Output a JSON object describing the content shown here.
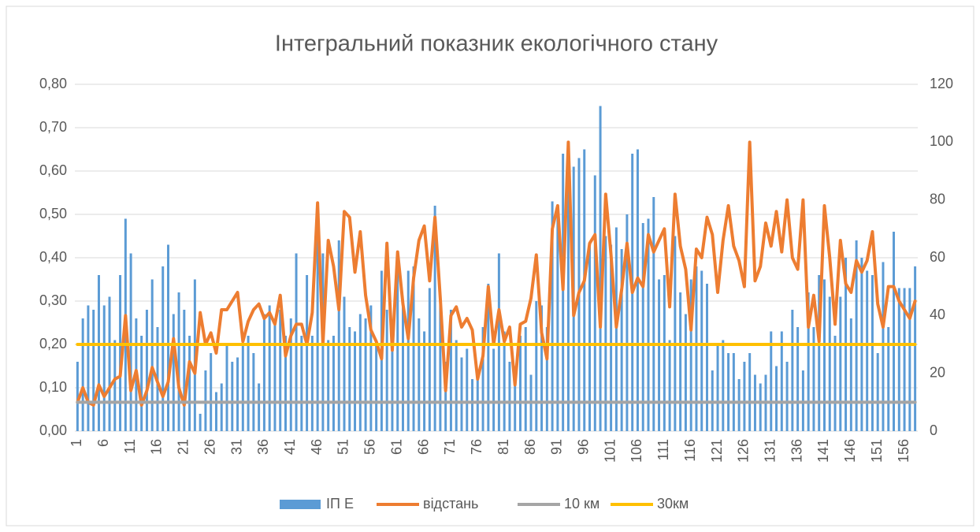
{
  "chart_data": {
    "type": "combo",
    "title": "Інтегральний показник екологічного стану",
    "categories": [
      1,
      null,
      null,
      null,
      null,
      6,
      null,
      null,
      null,
      null,
      11,
      null,
      null,
      null,
      null,
      16,
      null,
      null,
      null,
      null,
      21,
      null,
      null,
      null,
      null,
      26,
      null,
      null,
      null,
      null,
      31,
      null,
      null,
      null,
      null,
      36,
      null,
      null,
      null,
      null,
      41,
      null,
      null,
      null,
      null,
      46,
      null,
      null,
      null,
      null,
      51,
      null,
      null,
      null,
      null,
      56,
      null,
      null,
      null,
      null,
      61,
      null,
      null,
      null,
      null,
      66,
      null,
      null,
      null,
      null,
      71,
      null,
      null,
      null,
      null,
      76,
      null,
      null,
      null,
      null,
      81,
      null,
      null,
      null,
      null,
      86,
      null,
      null,
      null,
      null,
      91,
      null,
      null,
      null,
      null,
      96,
      null,
      null,
      null,
      null,
      101,
      null,
      null,
      null,
      null,
      106,
      null,
      null,
      null,
      null,
      111,
      null,
      null,
      null,
      null,
      116,
      null,
      null,
      null,
      null,
      121,
      null,
      null,
      null,
      null,
      126,
      null,
      null,
      null,
      null,
      131,
      null,
      null,
      null,
      null,
      136,
      null,
      null,
      null,
      null,
      141,
      null,
      null,
      null,
      null,
      146,
      null,
      null,
      null,
      null,
      151,
      null,
      null,
      null,
      null,
      156,
      null,
      null
    ],
    "ylim": [
      0,
      0.8
    ],
    "yticks": [
      {
        "value": 0,
        "label": "0,00"
      },
      {
        "value": 0.1,
        "label": "0,10"
      },
      {
        "value": 0.2,
        "label": "0,20"
      },
      {
        "value": 0.3,
        "label": "0,30"
      },
      {
        "value": 0.4,
        "label": "0,40"
      },
      {
        "value": 0.5,
        "label": "0,50"
      },
      {
        "value": 0.6,
        "label": "0,60"
      },
      {
        "value": 0.7,
        "label": "0,70"
      },
      {
        "value": 0.8,
        "label": "0,80"
      }
    ],
    "y2lim": [
      0,
      120
    ],
    "y2ticks": [
      0,
      20,
      40,
      60,
      80,
      100,
      120
    ],
    "grid": true,
    "legend": "bottom",
    "series": [
      {
        "name": "ІП Е",
        "type": "bar",
        "color": "#5b9bd5",
        "values": [
          0.16,
          0.26,
          0.29,
          0.28,
          0.36,
          0.29,
          0.31,
          0.21,
          0.36,
          0.49,
          0.41,
          0.26,
          0.22,
          0.28,
          0.35,
          0.24,
          0.38,
          0.43,
          0.27,
          0.32,
          0.28,
          0.22,
          0.35,
          0.04,
          0.14,
          0.18,
          0.09,
          0.11,
          0.2,
          0.16,
          0.17,
          0.2,
          0.22,
          0.18,
          0.11,
          0.27,
          0.29,
          0.25,
          0.28,
          0.22,
          0.26,
          0.41,
          0.22,
          0.36,
          0.22,
          0.48,
          0.41,
          0.21,
          0.22,
          0.44,
          0.31,
          0.24,
          0.23,
          0.27,
          0.26,
          0.29,
          0.21,
          0.37,
          0.28,
          0.22,
          0.38,
          0.3,
          0.37,
          0.38,
          0.26,
          0.23,
          0.33,
          0.52,
          0.29,
          0.16,
          0.28,
          0.21,
          0.17,
          0.19,
          0.12,
          0.12,
          0.24,
          0.34,
          0.19,
          0.41,
          0.23,
          0.16,
          0.15,
          0.22,
          0.24,
          0.13,
          0.3,
          0.29,
          0.24,
          0.53,
          0.52,
          0.64,
          0.66,
          0.61,
          0.63,
          0.65,
          0.43,
          0.59,
          0.75,
          0.45,
          0.43,
          0.47,
          0.42,
          0.5,
          0.64,
          0.65,
          0.48,
          0.49,
          0.54,
          0.35,
          0.36,
          0.21,
          0.45,
          0.32,
          0.27,
          0.35,
          0.38,
          0.37,
          0.34,
          0.14,
          0.2,
          0.21,
          0.18,
          0.18,
          0.12,
          0.16,
          0.18,
          0.13,
          0.11,
          0.13,
          0.23,
          0.15,
          0.23,
          0.16,
          0.28,
          0.24,
          0.14,
          0.32,
          0.24,
          0.36,
          0.35,
          0.31,
          0.22,
          0.31,
          0.4,
          0.26,
          0.44,
          0.4,
          0.37,
          0.36,
          0.18,
          0.39,
          0.24,
          0.46,
          0.33,
          0.33,
          0.33,
          0.38
        ]
      },
      {
        "name": "відстань",
        "type": "line",
        "axis": "y2",
        "color": "#ed7d31",
        "values": [
          10,
          15,
          10,
          9,
          16,
          12,
          15,
          18,
          19,
          40,
          14,
          21,
          9,
          14,
          22,
          17,
          12,
          17,
          32,
          15,
          9,
          24,
          20,
          41,
          30,
          34,
          27,
          42,
          42,
          45,
          48,
          31,
          38,
          42,
          44,
          39,
          41,
          37,
          47,
          26,
          33,
          37,
          37,
          30,
          41,
          79,
          30,
          66,
          57,
          42,
          76,
          74,
          55,
          69,
          47,
          35,
          31,
          25,
          65,
          28,
          62,
          44,
          32,
          53,
          66,
          71,
          52,
          74,
          46,
          14,
          40,
          43,
          36,
          39,
          35,
          18,
          26,
          50,
          30,
          42,
          31,
          36,
          16,
          37,
          38,
          46,
          61,
          34,
          25,
          70,
          78,
          49,
          100,
          40,
          48,
          52,
          65,
          68,
          36,
          82,
          61,
          36,
          49,
          65,
          48,
          53,
          50,
          68,
          62,
          66,
          70,
          43,
          82,
          64,
          56,
          35,
          63,
          60,
          74,
          68,
          48,
          66,
          78,
          64,
          59,
          50,
          100,
          52,
          57,
          72,
          64,
          76,
          62,
          80,
          60,
          56,
          80,
          36,
          47,
          31,
          78,
          60,
          37,
          66,
          51,
          48,
          59,
          55,
          59,
          69,
          44,
          36,
          50,
          50,
          45,
          42,
          39,
          45
        ]
      },
      {
        "name": "10 км",
        "type": "line",
        "axis": "y2",
        "color": "#a5a5a5",
        "values": [
          10,
          10,
          10,
          10,
          10,
          10,
          10,
          10,
          10,
          10,
          10,
          10,
          10,
          10,
          10,
          10,
          10,
          10,
          10,
          10,
          10,
          10,
          10,
          10,
          10,
          10,
          10,
          10,
          10,
          10,
          10,
          10,
          10,
          10,
          10,
          10,
          10,
          10,
          10,
          10,
          10,
          10,
          10,
          10,
          10,
          10,
          10,
          10,
          10,
          10,
          10,
          10,
          10,
          10,
          10,
          10,
          10,
          10,
          10,
          10,
          10,
          10,
          10,
          10,
          10,
          10,
          10,
          10,
          10,
          10,
          10,
          10,
          10,
          10,
          10,
          10,
          10,
          10,
          10,
          10,
          10,
          10,
          10,
          10,
          10,
          10,
          10,
          10,
          10,
          10,
          10,
          10,
          10,
          10,
          10,
          10,
          10,
          10,
          10,
          10,
          10,
          10,
          10,
          10,
          10,
          10,
          10,
          10,
          10,
          10,
          10,
          10,
          10,
          10,
          10,
          10,
          10,
          10,
          10,
          10,
          10,
          10,
          10,
          10,
          10,
          10,
          10,
          10,
          10,
          10,
          10,
          10,
          10,
          10,
          10,
          10,
          10,
          10,
          10,
          10,
          10,
          10,
          10,
          10,
          10,
          10,
          10,
          10,
          10,
          10,
          10,
          10,
          10,
          10,
          10,
          10,
          10,
          10
        ]
      },
      {
        "name": "30км",
        "type": "line",
        "axis": "y2",
        "color": "#ffc000",
        "values": [
          30,
          30,
          30,
          30,
          30,
          30,
          30,
          30,
          30,
          30,
          30,
          30,
          30,
          30,
          30,
          30,
          30,
          30,
          30,
          30,
          30,
          30,
          30,
          30,
          30,
          30,
          30,
          30,
          30,
          30,
          30,
          30,
          30,
          30,
          30,
          30,
          30,
          30,
          30,
          30,
          30,
          30,
          30,
          30,
          30,
          30,
          30,
          30,
          30,
          30,
          30,
          30,
          30,
          30,
          30,
          30,
          30,
          30,
          30,
          30,
          30,
          30,
          30,
          30,
          30,
          30,
          30,
          30,
          30,
          30,
          30,
          30,
          30,
          30,
          30,
          30,
          30,
          30,
          30,
          30,
          30,
          30,
          30,
          30,
          30,
          30,
          30,
          30,
          30,
          30,
          30,
          30,
          30,
          30,
          30,
          30,
          30,
          30,
          30,
          30,
          30,
          30,
          30,
          30,
          30,
          30,
          30,
          30,
          30,
          30,
          30,
          30,
          30,
          30,
          30,
          30,
          30,
          30,
          30,
          30,
          30,
          30,
          30,
          30,
          30,
          30,
          30,
          30,
          30,
          30,
          30,
          30,
          30,
          30,
          30,
          30,
          30,
          30,
          30,
          30,
          30,
          30,
          30,
          30,
          30,
          30,
          30,
          30,
          30,
          30,
          30,
          30,
          30,
          30,
          30,
          30,
          30,
          30
        ]
      }
    ]
  }
}
